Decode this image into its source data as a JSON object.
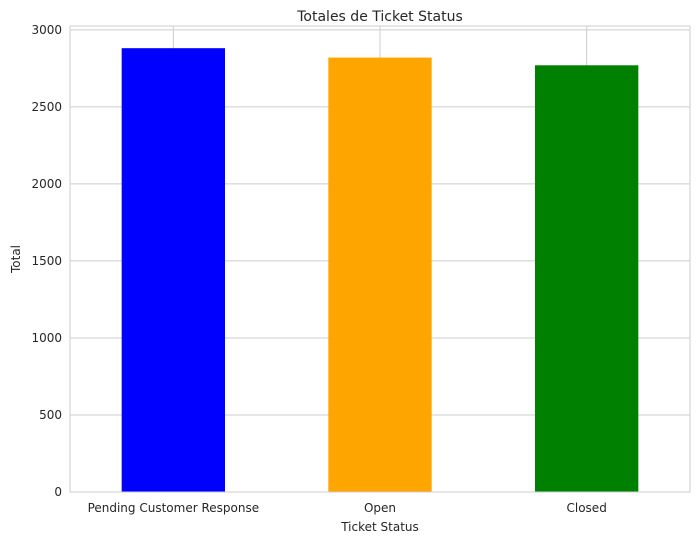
{
  "chart_data": {
    "type": "bar",
    "title": "Totales de Ticket Status",
    "xlabel": "Ticket Status",
    "ylabel": "Total",
    "categories": [
      "Pending Customer Response",
      "Open",
      "Closed"
    ],
    "values": [
      2881,
      2820,
      2770
    ],
    "colors": [
      "#0000ff",
      "#ffa500",
      "#008000"
    ],
    "ylim": [
      0,
      3025
    ],
    "yticks": [
      0,
      500,
      1000,
      1500,
      2000,
      2500,
      3000
    ],
    "grid": true,
    "legend": "none"
  }
}
